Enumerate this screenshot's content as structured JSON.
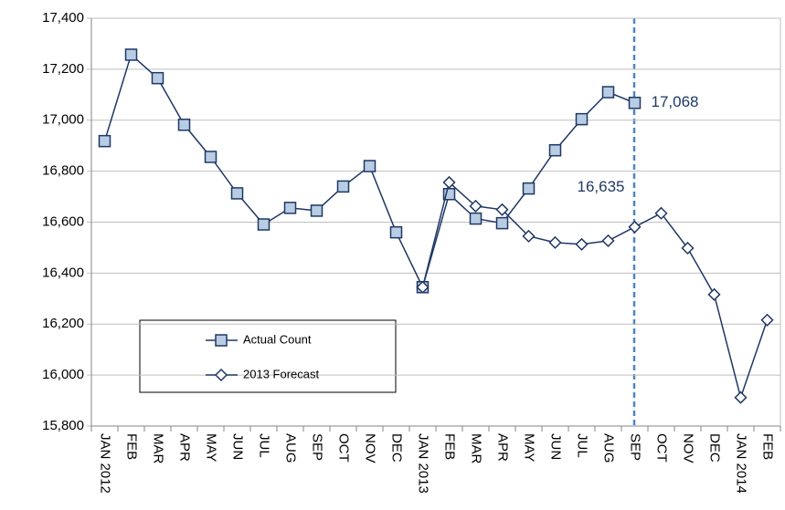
{
  "chart_data": {
    "type": "line",
    "categories": [
      "JAN 2012",
      "FEB",
      "MAR",
      "APR",
      "MAY",
      "JUN",
      "JUL",
      "AUG",
      "SEP",
      "OCT",
      "NOV",
      "DEC",
      "JAN 2013",
      "FEB",
      "MAR",
      "APR",
      "MAY",
      "JUN",
      "JUL",
      "AUG",
      "SEP",
      "OCT",
      "NOV",
      "DEC",
      "JAN 2014",
      "FEB"
    ],
    "series": [
      {
        "name": "Actual Count",
        "color": "#1f3864",
        "marker": "square",
        "marker_fill": "#b8cce4",
        "values": [
          16918,
          17257,
          17165,
          16982,
          16856,
          16713,
          16591,
          16656,
          16645,
          16740,
          16820,
          16560,
          16345,
          16710,
          16614,
          16596,
          16732,
          16882,
          17004,
          17110,
          17068,
          null,
          null,
          null,
          null,
          null
        ],
        "value_labels": [
          null,
          null,
          null,
          null,
          null,
          null,
          null,
          null,
          null,
          null,
          null,
          null,
          null,
          null,
          null,
          null,
          null,
          null,
          null,
          null,
          "17,068",
          null,
          null,
          null,
          null,
          null
        ]
      },
      {
        "name": "2013 Forecast",
        "color": "#1f3864",
        "marker": "diamond",
        "marker_fill": "#ffffff",
        "values": [
          null,
          null,
          null,
          null,
          null,
          null,
          null,
          null,
          null,
          null,
          null,
          null,
          16345,
          16756,
          16663,
          16649,
          16545,
          16520,
          16513,
          16527,
          16581,
          16635,
          16498,
          16316,
          15912,
          16216
        ],
        "value_labels": [
          null,
          null,
          null,
          null,
          null,
          null,
          null,
          null,
          null,
          null,
          null,
          null,
          null,
          null,
          null,
          null,
          null,
          null,
          null,
          null,
          null,
          "16,635",
          null,
          null,
          null,
          null
        ]
      }
    ],
    "ylim": [
      15800,
      17400
    ],
    "yticks": [
      {
        "value": 15800,
        "label": "15,800"
      },
      {
        "value": 16000,
        "label": "16,000"
      },
      {
        "value": 16200,
        "label": "16,200"
      },
      {
        "value": 16400,
        "label": "16,400"
      },
      {
        "value": 16600,
        "label": "16,600"
      },
      {
        "value": 16800,
        "label": "16,800"
      },
      {
        "value": 17000,
        "label": "17,000"
      },
      {
        "value": 17200,
        "label": "17,200"
      },
      {
        "value": 17400,
        "label": "17,400"
      }
    ],
    "grid": true
  }
}
